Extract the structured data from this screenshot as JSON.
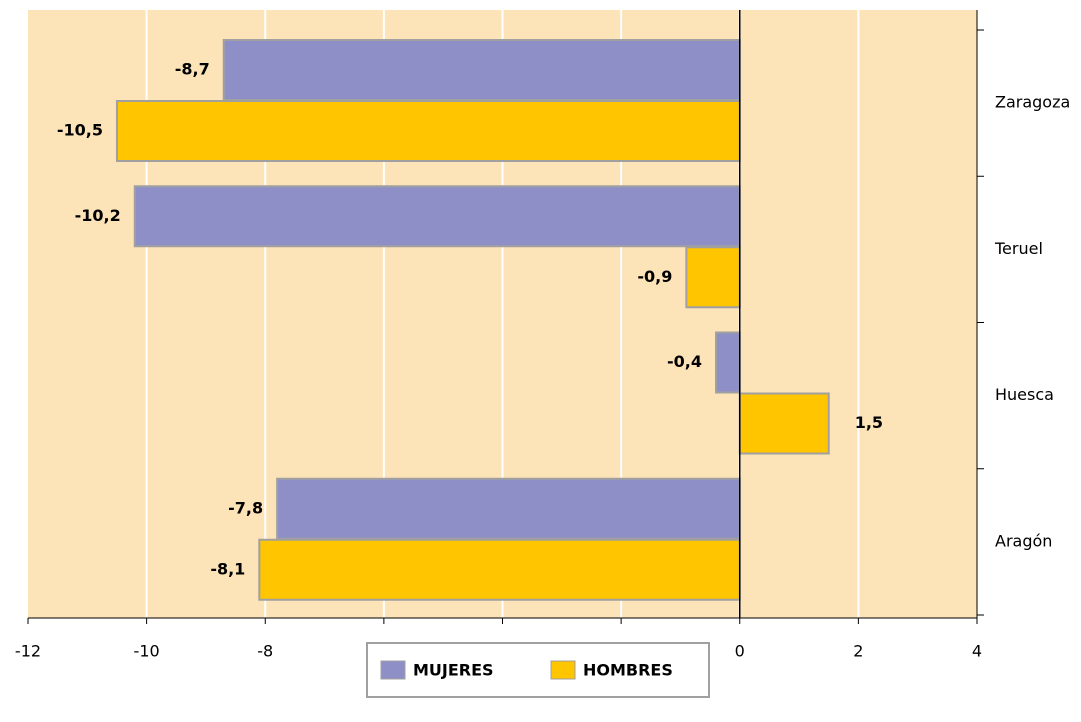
{
  "chart_data": {
    "type": "barh",
    "categories": [
      "Zaragoza",
      "Teruel",
      "Huesca",
      "Aragón"
    ],
    "series": [
      {
        "name": "MUJERES",
        "color": "#8f8fc8",
        "values": [
          -8.7,
          -10.2,
          -0.4,
          -7.8
        ],
        "value_labels": [
          "-8,7",
          "-10,2",
          "-0,4",
          "-7,8"
        ]
      },
      {
        "name": "HOMBRES",
        "color": "#ffc600",
        "values": [
          -10.5,
          -0.9,
          1.5,
          -8.1
        ],
        "value_labels": [
          "-10,5",
          "-0,9",
          "1,5",
          "-8,1"
        ]
      }
    ],
    "xlim": [
      -12,
      4
    ],
    "xticks": [
      -12,
      -10,
      -8,
      -6,
      -4,
      -2,
      0,
      2,
      4
    ],
    "grid": true,
    "legend": "bottom"
  }
}
